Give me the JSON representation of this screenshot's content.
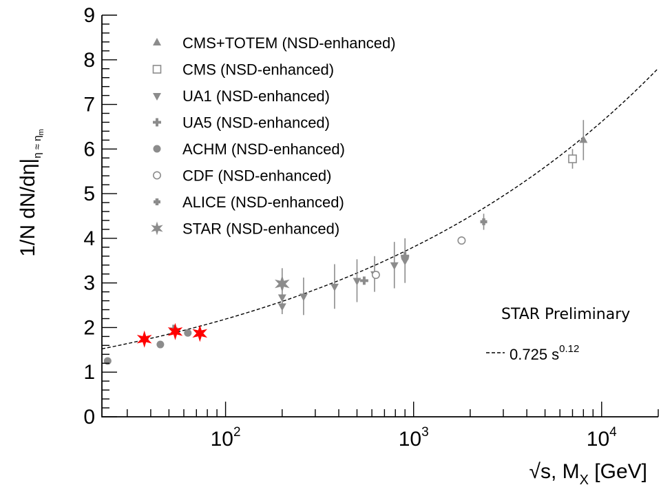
{
  "chart_data": {
    "type": "scatter",
    "title": "",
    "x_scale": "log",
    "xlim": [
      22,
      20000
    ],
    "ylim": [
      0,
      9
    ],
    "xlabel": {
      "prefix": "√s, M",
      "sub": "X",
      "suffix": " [GeV]"
    },
    "ylabel": {
      "main": "1/N dN/dη|",
      "sub": "η ≈ η",
      "subsub": "m"
    },
    "y_ticks": [
      "0",
      "1",
      "2",
      "3",
      "4",
      "5",
      "6",
      "7",
      "8",
      "9"
    ],
    "x_ticks": [
      {
        "value": 100,
        "base": "10",
        "exp": "2"
      },
      {
        "value": 1000,
        "base": "10",
        "exp": "3"
      },
      {
        "value": 10000,
        "base": "10",
        "exp": "4"
      }
    ],
    "legend_position": "top-left",
    "series": [
      {
        "name": "CMS+TOTEM (NSD-enhanced)",
        "marker": "triangle-up",
        "color": "#8c8c8c",
        "points": [
          [
            8000,
            6.2,
            0.45
          ]
        ]
      },
      {
        "name": "CMS (NSD-enhanced)",
        "marker": "square-open",
        "color": "#8c8c8c",
        "points": [
          [
            7000,
            5.78,
            0.22
          ]
        ]
      },
      {
        "name": "UA1 (NSD-enhanced)",
        "marker": "triangle-down",
        "color": "#8c8c8c",
        "points": [
          [
            200,
            2.48,
            0.18
          ],
          [
            200,
            2.68,
            0.25
          ],
          [
            260,
            2.7,
            0.42
          ],
          [
            380,
            2.92,
            0.5
          ],
          [
            500,
            3.05,
            0.48
          ],
          [
            620,
            3.2,
            0.4
          ],
          [
            790,
            3.4,
            0.52
          ],
          [
            900,
            3.5,
            0.5
          ]
        ]
      },
      {
        "name": "UA5 (NSD-enhanced)",
        "marker": "plus",
        "color": "#8c8c8c",
        "points": [
          [
            53,
            1.97,
            0.05
          ],
          [
            546,
            3.05,
            0.05
          ],
          [
            900,
            3.6,
            0.1
          ]
        ]
      },
      {
        "name": "ACHM (NSD-enhanced)",
        "marker": "circle",
        "color": "#8c8c8c",
        "points": [
          [
            23.6,
            1.25,
            0.03
          ],
          [
            45,
            1.62,
            0.03
          ],
          [
            63,
            1.88,
            0.03
          ]
        ]
      },
      {
        "name": "CDF (NSD-enhanced)",
        "marker": "circle-open",
        "color": "#8c8c8c",
        "points": [
          [
            630,
            3.18,
            0.06
          ],
          [
            1800,
            3.95,
            0.06
          ]
        ]
      },
      {
        "name": "ALICE (NSD-enhanced)",
        "marker": "plus-bold",
        "color": "#8c8c8c",
        "points": [
          [
            900,
            3.55,
            0.08
          ],
          [
            2360,
            4.37,
            0.18
          ]
        ]
      },
      {
        "name": "STAR (NSD-enhanced)",
        "marker": "star",
        "color": "#8c8c8c",
        "points": [
          [
            200,
            2.98,
            0.35
          ]
        ]
      },
      {
        "name": "STAR Preliminary",
        "marker": "star",
        "color": "#ff0000",
        "points": [
          [
            37,
            1.74,
            0
          ],
          [
            54,
            1.91,
            0
          ],
          [
            73,
            1.87,
            0
          ]
        ]
      }
    ],
    "fit": {
      "label_main": "0.725 s",
      "label_exp": "0.12",
      "coefficient": 0.725,
      "exponent": 0.12
    }
  }
}
